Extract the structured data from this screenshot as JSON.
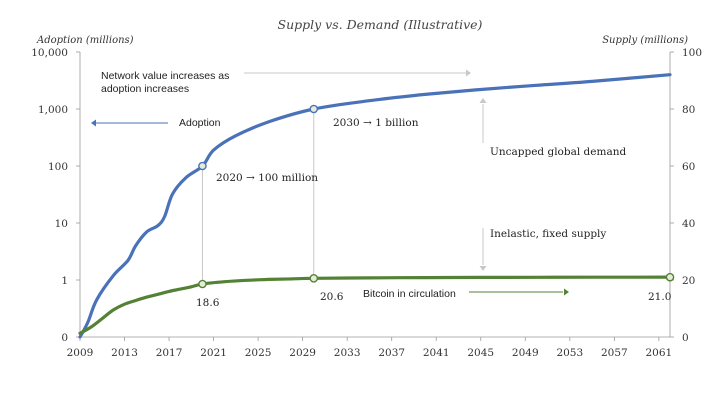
{
  "chart_data": {
    "type": "line",
    "title": "Supply vs. Demand (Illustrative)",
    "ylabel_left": "Adoption (millions)",
    "ylabel_right": "Supply (millions)",
    "y_left_scale": "log",
    "y_left_ticks": [
      "0",
      "1",
      "10",
      "100",
      "1,000",
      "10,000"
    ],
    "y_right_ticks": [
      "0",
      "20",
      "40",
      "60",
      "80",
      "100"
    ],
    "y_right_lim": [
      0,
      100
    ],
    "x_ticks": [
      "2009",
      "2013",
      "2017",
      "2021",
      "2025",
      "2029",
      "2033",
      "2037",
      "2041",
      "2045",
      "2049",
      "2053",
      "2057",
      "2061"
    ],
    "x_lim": [
      2009,
      2062
    ],
    "grid": false,
    "colors": {
      "adoption": "#4a72b8",
      "supply": "#548235",
      "leader": "#c8c8c8",
      "text": "#333333"
    },
    "series": [
      {
        "name": "Adoption",
        "axis": "left",
        "x": [
          2009,
          2009.7,
          2010.5,
          2012,
          2013.3,
          2014,
          2015,
          2016,
          2016.6,
          2017.3,
          2018.5,
          2020,
          2021,
          2023,
          2026,
          2030,
          2035,
          2040,
          2045,
          2050,
          2055,
          2062
        ],
        "y": [
          0.1,
          0.18,
          0.45,
          1.2,
          2.2,
          4,
          7,
          9,
          13,
          32,
          62,
          100,
          190,
          340,
          600,
          1000,
          1400,
          1800,
          2200,
          2600,
          3050,
          4000
        ]
      },
      {
        "name": "Bitcoin in circulation",
        "axis": "right",
        "x": [
          2009,
          2010,
          2011,
          2012,
          2013,
          2014,
          2015,
          2016,
          2017,
          2018,
          2019,
          2020,
          2022,
          2024,
          2026,
          2028,
          2030,
          2035,
          2040,
          2045,
          2050,
          2055,
          2062
        ],
        "y": [
          1.3,
          3.5,
          6.5,
          9.5,
          11.5,
          12.8,
          14.0,
          15.0,
          16.0,
          16.8,
          17.6,
          18.6,
          19.4,
          19.9,
          20.2,
          20.4,
          20.6,
          20.75,
          20.85,
          20.9,
          20.95,
          20.98,
          21.0
        ]
      }
    ],
    "markers": [
      {
        "series": "Adoption",
        "x": 2020,
        "y": 100
      },
      {
        "series": "Adoption",
        "x": 2030,
        "y": 1000
      },
      {
        "series": "Bitcoin in circulation",
        "x": 2020,
        "y": 18.6
      },
      {
        "series": "Bitcoin in circulation",
        "x": 2030,
        "y": 20.6
      },
      {
        "series": "Bitcoin in circulation",
        "x": 2062,
        "y": 21.0
      }
    ],
    "annotations": {
      "network_value_line1": "Network value increases as",
      "network_value_line2": "adoption increases",
      "adoption_label": "Adoption",
      "point_2020": "2020 → 100 million",
      "point_2030": "2030 → 1 billion",
      "uncapped": "Uncapped global demand",
      "inelastic": "Inelastic, fixed supply",
      "circulation_label": "Bitcoin in circulation",
      "supply_2020": "18.6",
      "supply_2030": "20.6",
      "supply_2062": "21.0"
    }
  }
}
